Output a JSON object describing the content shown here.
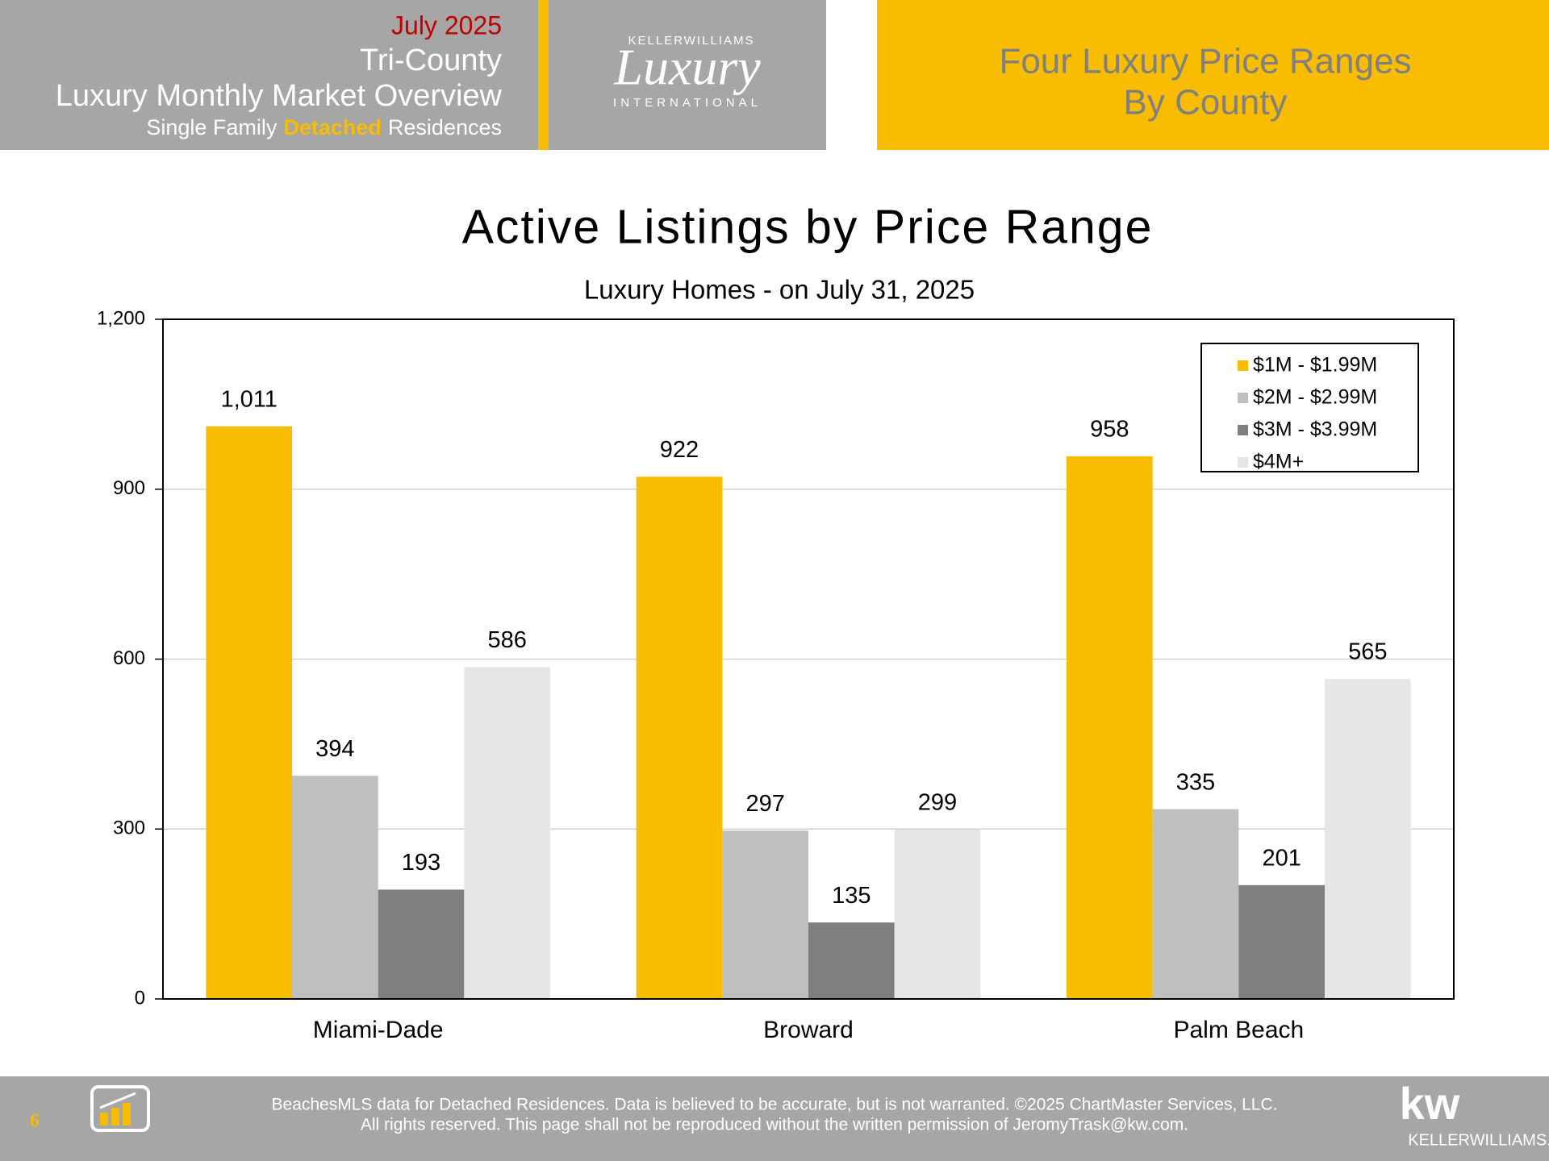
{
  "header": {
    "date": "July 2025",
    "region": "Tri-County",
    "title": "Luxury Monthly Market Overview",
    "subtitle": [
      "Single Family",
      "Detached",
      "Residences"
    ],
    "logo": {
      "brand": "KELLERWILLIAMS",
      "script": "Luxury",
      "tagline": "INTERNATIONAL"
    },
    "banner": [
      "Four Luxury Price Ranges",
      "By County"
    ]
  },
  "chart_data": {
    "type": "bar",
    "title": "Active Listings by Price Range",
    "subtitle": "Luxury Homes - on July 31, 2025",
    "categories": [
      "Miami-Dade",
      "Broward",
      "Palm Beach"
    ],
    "series": [
      {
        "name": "$1M - $1.99M",
        "color": "#f8bc00",
        "values": [
          1011,
          922,
          958
        ],
        "value_labels": [
          "1,011",
          "922",
          "958"
        ]
      },
      {
        "name": "$2M - $2.99M",
        "color": "#bfbfbf",
        "values": [
          394,
          297,
          335
        ]
      },
      {
        "name": "$3M - $3.99M",
        "color": "#7f7f7f",
        "values": [
          193,
          135,
          201
        ]
      },
      {
        "name": "$4M+",
        "color": "#e6e6e6",
        "values": [
          586,
          299,
          565
        ]
      }
    ],
    "ylim": [
      0,
      1200
    ],
    "yticks": [
      0,
      300,
      600,
      900,
      {
        "value": 1200,
        "label": "1,200"
      }
    ],
    "grid": true,
    "legend": "upper right"
  },
  "footer": {
    "page": "6",
    "lines": [
      "BeachesMLS data for Detached Residences.  Data is believed to be accurate, but is not warranted.   ©2025  ChartMaster Services, LLC.",
      "All rights reserved. This page shall not be reproduced without the written permission of JeromyTrask@kw.com."
    ],
    "logo": {
      "mark": "kw",
      "name": "KELLERWILLIAMS."
    }
  }
}
